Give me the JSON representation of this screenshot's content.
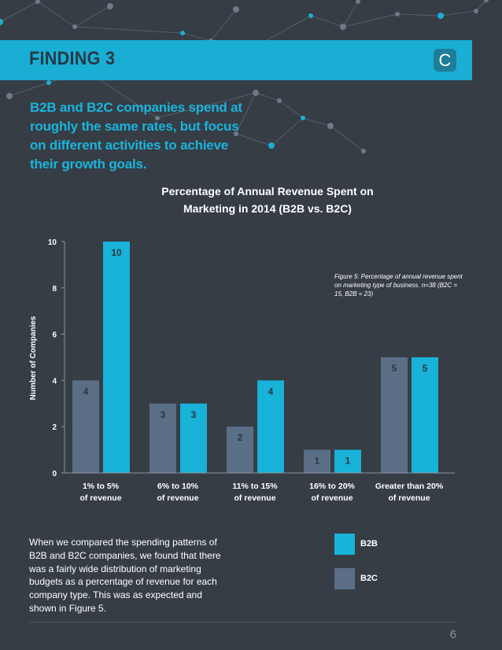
{
  "header": {
    "title": "FINDING 3",
    "logo_letter": "C"
  },
  "intro": {
    "lines": [
      "B2B and B2C companies spend at",
      "roughly the same rates, but focus",
      "on different activities to achieve",
      "their growth goals."
    ]
  },
  "chart_data": {
    "type": "bar",
    "title_lines": [
      "Percentage of Annual Revenue Spent on",
      "Marketing in 2014 (B2B vs. B2C)"
    ],
    "ylabel": "Number of Companies",
    "xlabel": "",
    "ylim": [
      0,
      10
    ],
    "yticks": [
      0,
      2,
      4,
      6,
      8,
      10
    ],
    "categories": [
      [
        "1% to 5%",
        "of revenue"
      ],
      [
        "6% to 10%",
        "of revenue"
      ],
      [
        "11% to 15%",
        "of revenue"
      ],
      [
        "16% to 20%",
        "of revenue"
      ],
      [
        "Greater than 20%",
        "of revenue"
      ]
    ],
    "series": [
      {
        "name": "B2C",
        "color": "#5a6f85",
        "values": [
          4,
          3,
          2,
          1,
          5
        ]
      },
      {
        "name": "B2B",
        "color": "#19b2d8",
        "values": [
          10,
          3,
          4,
          1,
          5
        ]
      }
    ],
    "annotation_lines": [
      "Figure 5: Percentage of annual revenue spent",
      "on marketing type of business. n=38 (B2C =",
      "15, B2B = 23)"
    ],
    "grid": false
  },
  "body": {
    "lines": [
      "When we compared the spending patterns of",
      "B2B and B2C companies, we found that there",
      "was a fairly wide distribution of marketing",
      "budgets as a percentage of revenue for each",
      "company type. This was as expected and",
      "shown in Figure 5."
    ]
  },
  "legend": {
    "items": [
      {
        "label": "B2B",
        "color": "#19b2d8"
      },
      {
        "label": "B2C",
        "color": "#5a6f85"
      }
    ]
  },
  "footer": {
    "page_number": "6"
  }
}
